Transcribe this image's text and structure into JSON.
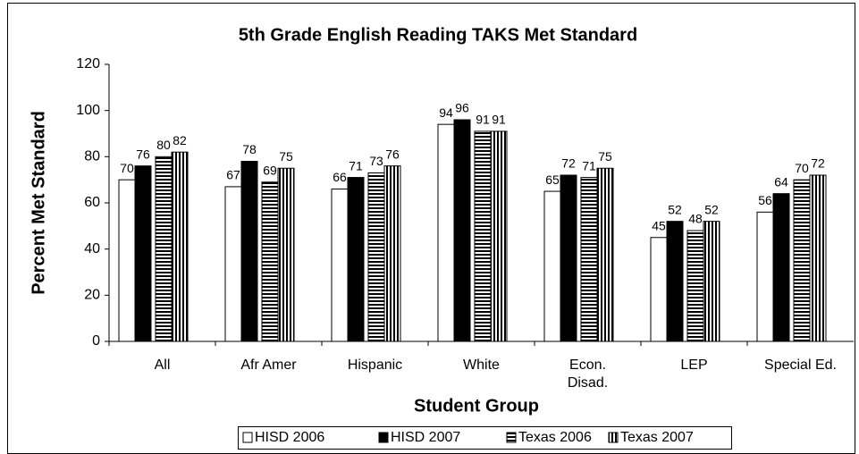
{
  "chart_data": {
    "type": "bar",
    "title": "5th Grade English Reading TAKS Met Standard",
    "x_label": "Student Group",
    "y_label": "Percent Met Standard",
    "categories": [
      "All",
      "Afr Amer",
      "Hispanic",
      "White",
      [
        "Econ.",
        "Disad."
      ],
      "LEP",
      "Special Ed."
    ],
    "series": [
      {
        "name": "HISD 2006",
        "color": "#ffffff",
        "pattern": "solid",
        "values": [
          70,
          67,
          66,
          94,
          65,
          45,
          56
        ]
      },
      {
        "name": "HISD 2007",
        "color": "#000000",
        "pattern": "solid",
        "values": [
          76,
          78,
          71,
          96,
          72,
          52,
          64
        ]
      },
      {
        "name": "Texas 2006",
        "color": "#000000",
        "pattern": "horizontal",
        "values": [
          80,
          69,
          73,
          91,
          71,
          48,
          70
        ]
      },
      {
        "name": "Texas 2007",
        "color": "#000000",
        "pattern": "vertical",
        "values": [
          82,
          75,
          76,
          91,
          75,
          52,
          72
        ]
      }
    ],
    "ylim": [
      0,
      120
    ],
    "yticks": [
      0,
      20,
      40,
      60,
      80,
      100,
      120
    ],
    "grid": false,
    "legend": "bottom"
  }
}
